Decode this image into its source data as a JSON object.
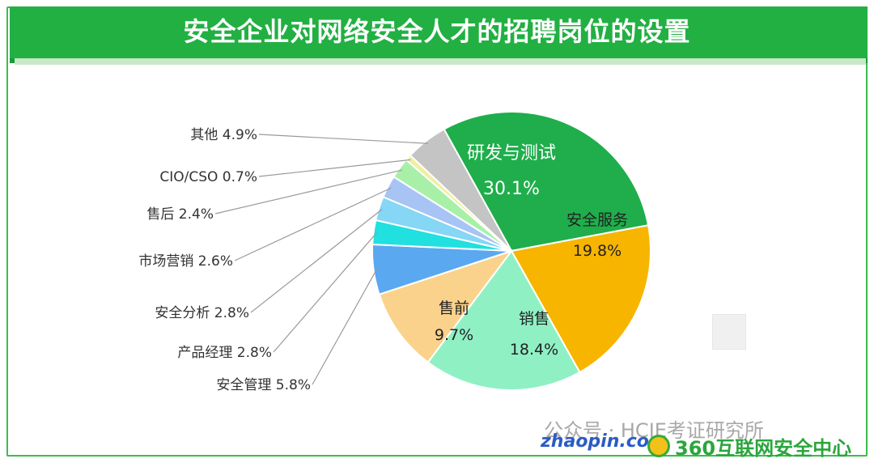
{
  "title": "安全企业对网络安全人才的招聘岗位的设置",
  "watermark": "公众号 · HCIE考证研究所",
  "logos": {
    "zhaopin": "zhaopin.com",
    "sec360": "360互联网安全中心"
  },
  "chart_data": {
    "type": "pie",
    "title": "安全企业对网络安全人才的招聘岗位的设置",
    "slices": [
      {
        "label": "研发与测试",
        "value": 30.1,
        "display": "30.1%",
        "color": "#1fae4b",
        "label_style": "inside-light"
      },
      {
        "label": "安全服务",
        "value": 19.8,
        "display": "19.8%",
        "color": "#f7b500",
        "label_style": "inside"
      },
      {
        "label": "销售",
        "value": 18.4,
        "display": "18.4%",
        "color": "#8ff0c4",
        "label_style": "inside"
      },
      {
        "label": "售前",
        "value": 9.7,
        "display": "9.7%",
        "color": "#fbd28b",
        "label_style": "inside"
      },
      {
        "label": "安全管理",
        "value": 5.8,
        "display": "5.8%",
        "color": "#5aa8f0",
        "label_style": "callout"
      },
      {
        "label": "产品经理",
        "value": 2.8,
        "display": "2.8%",
        "color": "#21e0e0",
        "label_style": "callout"
      },
      {
        "label": "安全分析",
        "value": 2.8,
        "display": "2.8%",
        "color": "#86d6f5",
        "label_style": "callout"
      },
      {
        "label": "市场营销",
        "value": 2.6,
        "display": "2.6%",
        "color": "#a8c4f4",
        "label_style": "callout"
      },
      {
        "label": "售后",
        "value": 2.4,
        "display": "2.4%",
        "color": "#a8f0a8",
        "label_style": "callout"
      },
      {
        "label": "CIO/CSO",
        "value": 0.7,
        "display": "0.7%",
        "color": "#eef0a0",
        "label_style": "callout"
      },
      {
        "label": "其他",
        "value": 4.9,
        "display": "4.9%",
        "color": "#c4c4c4",
        "label_style": "callout"
      }
    ]
  }
}
